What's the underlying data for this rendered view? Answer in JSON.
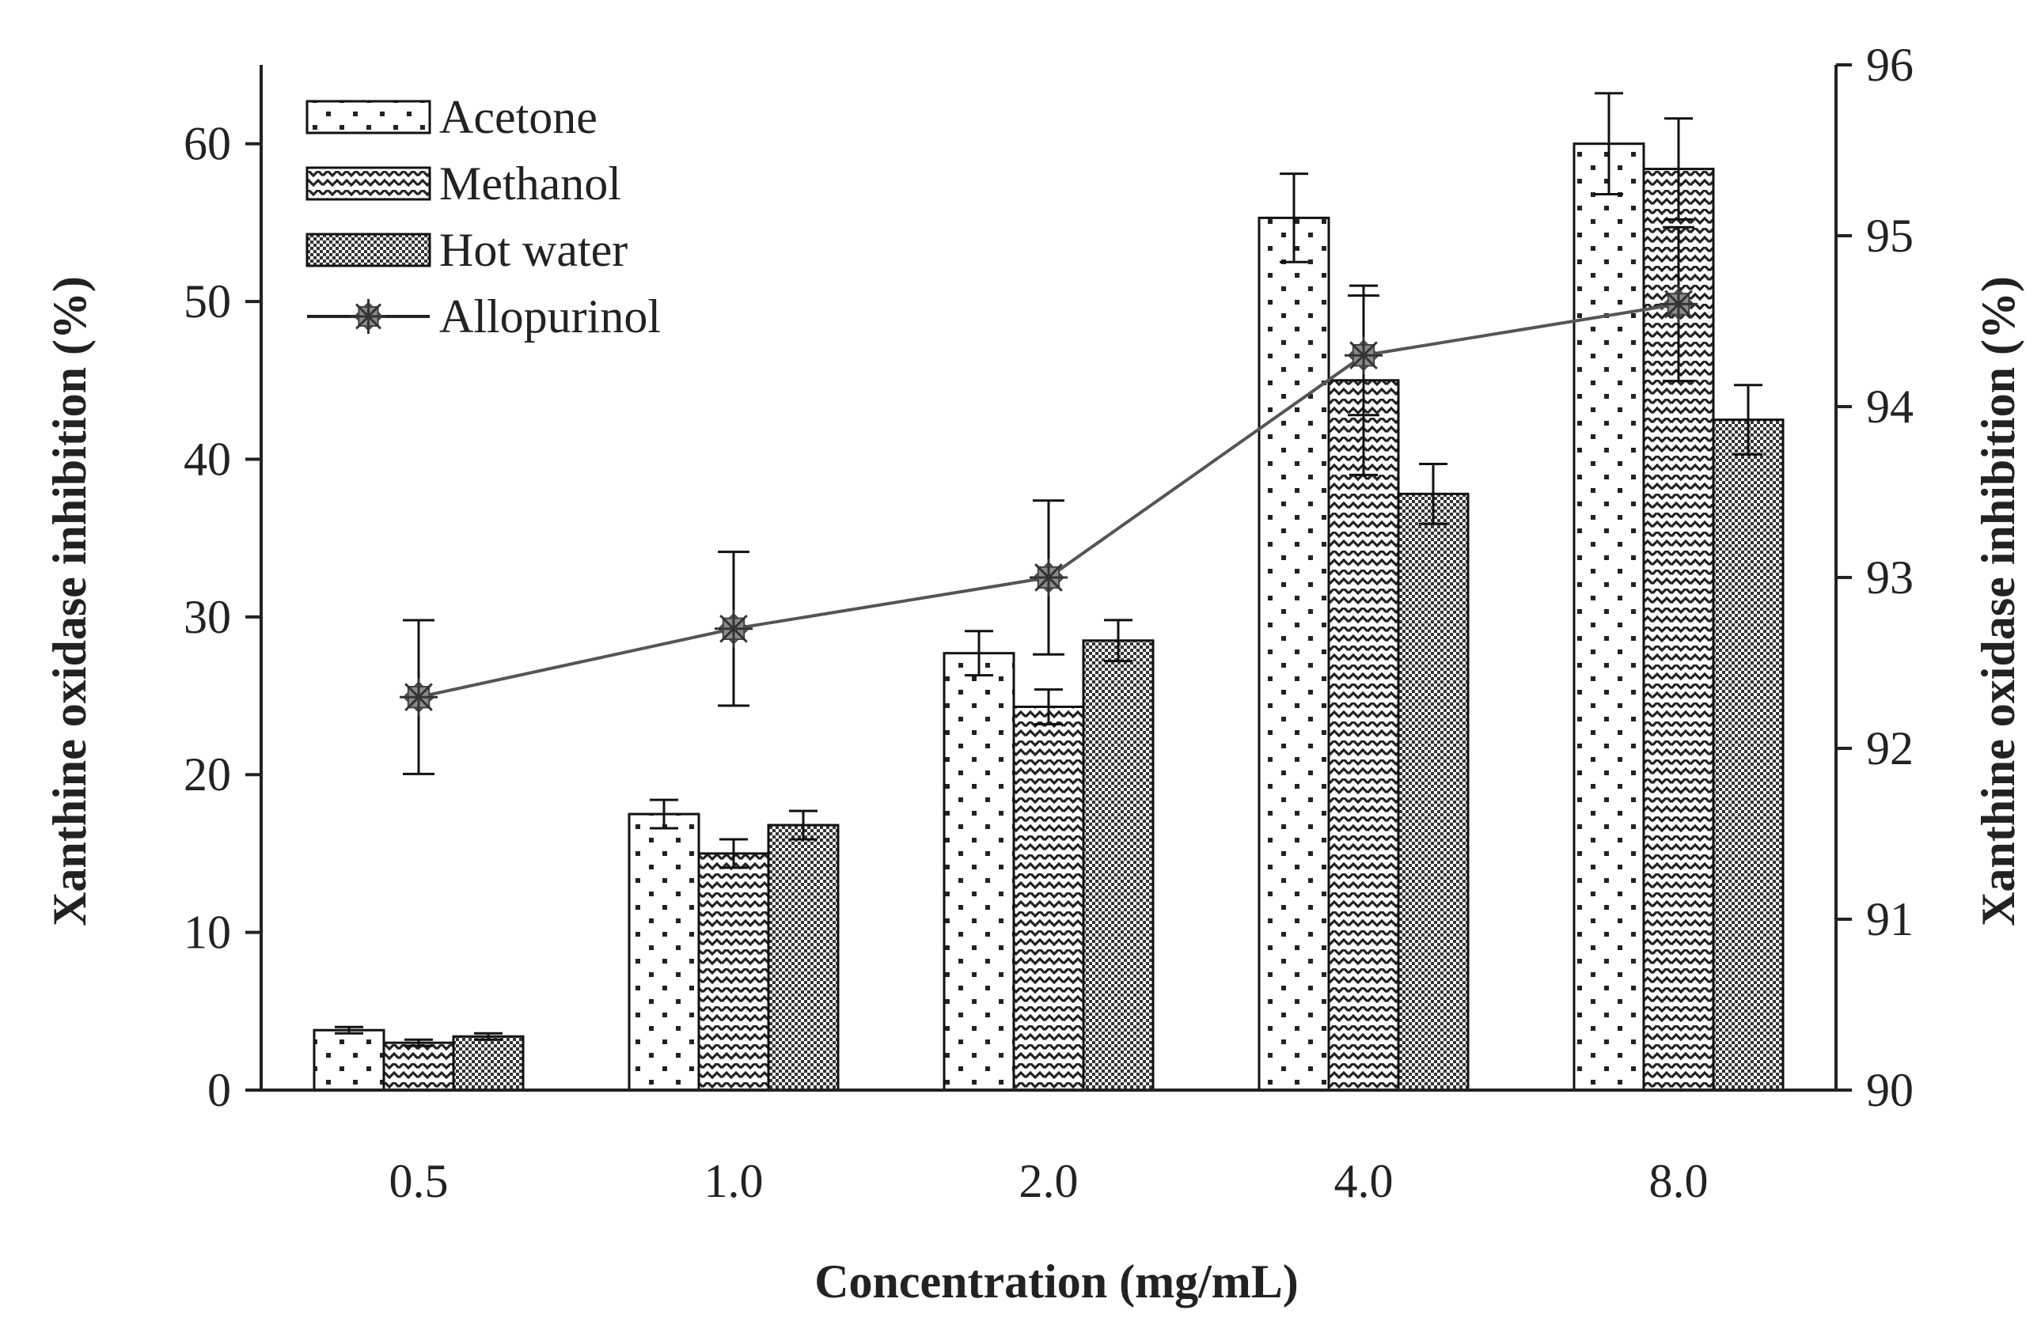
{
  "chart_data": {
    "type": "bar",
    "categories": [
      "0.5",
      "1.0",
      "2.0",
      "4.0",
      "8.0"
    ],
    "xlabel": "Concentration (mg/mL)",
    "ylabel": "Xanthine oxidase inhibition (%)",
    "y2label": "Xanthine oxidase inhibition (%)",
    "ylim": [
      0,
      65
    ],
    "yticks": [
      0,
      10,
      20,
      30,
      40,
      50,
      60
    ],
    "y2lim": [
      90,
      96
    ],
    "y2ticks": [
      90,
      91,
      92,
      93,
      94,
      95,
      96
    ],
    "grid": false,
    "legend_position": "top-left",
    "series": [
      {
        "name": "Acetone",
        "type": "bar",
        "axis": "left",
        "pattern": "dots",
        "values": [
          3.8,
          17.5,
          27.7,
          55.3,
          60.0
        ],
        "errors": [
          0.2,
          0.9,
          1.4,
          2.8,
          3.2
        ]
      },
      {
        "name": "Methanol",
        "type": "bar",
        "axis": "left",
        "pattern": "zigzag",
        "values": [
          3.0,
          15.0,
          24.3,
          45.0,
          58.4
        ],
        "errors": [
          0.2,
          0.9,
          1.1,
          6.0,
          3.2
        ]
      },
      {
        "name": "Hot water",
        "type": "bar",
        "axis": "left",
        "pattern": "fine-check",
        "values": [
          3.4,
          16.8,
          28.5,
          37.8,
          42.5
        ],
        "errors": [
          0.2,
          0.9,
          1.3,
          1.9,
          2.2
        ]
      },
      {
        "name": "Allopurinol",
        "type": "line",
        "axis": "right",
        "marker": "star",
        "values": [
          92.3,
          92.7,
          93.0,
          94.3,
          94.6
        ],
        "errors": [
          0.45,
          0.45,
          0.45,
          0.35,
          0.45
        ]
      }
    ],
    "colors": {
      "axis": "#222222",
      "bar_stroke": "#111111",
      "line": "#555555",
      "marker": "#8a8a8a"
    }
  }
}
